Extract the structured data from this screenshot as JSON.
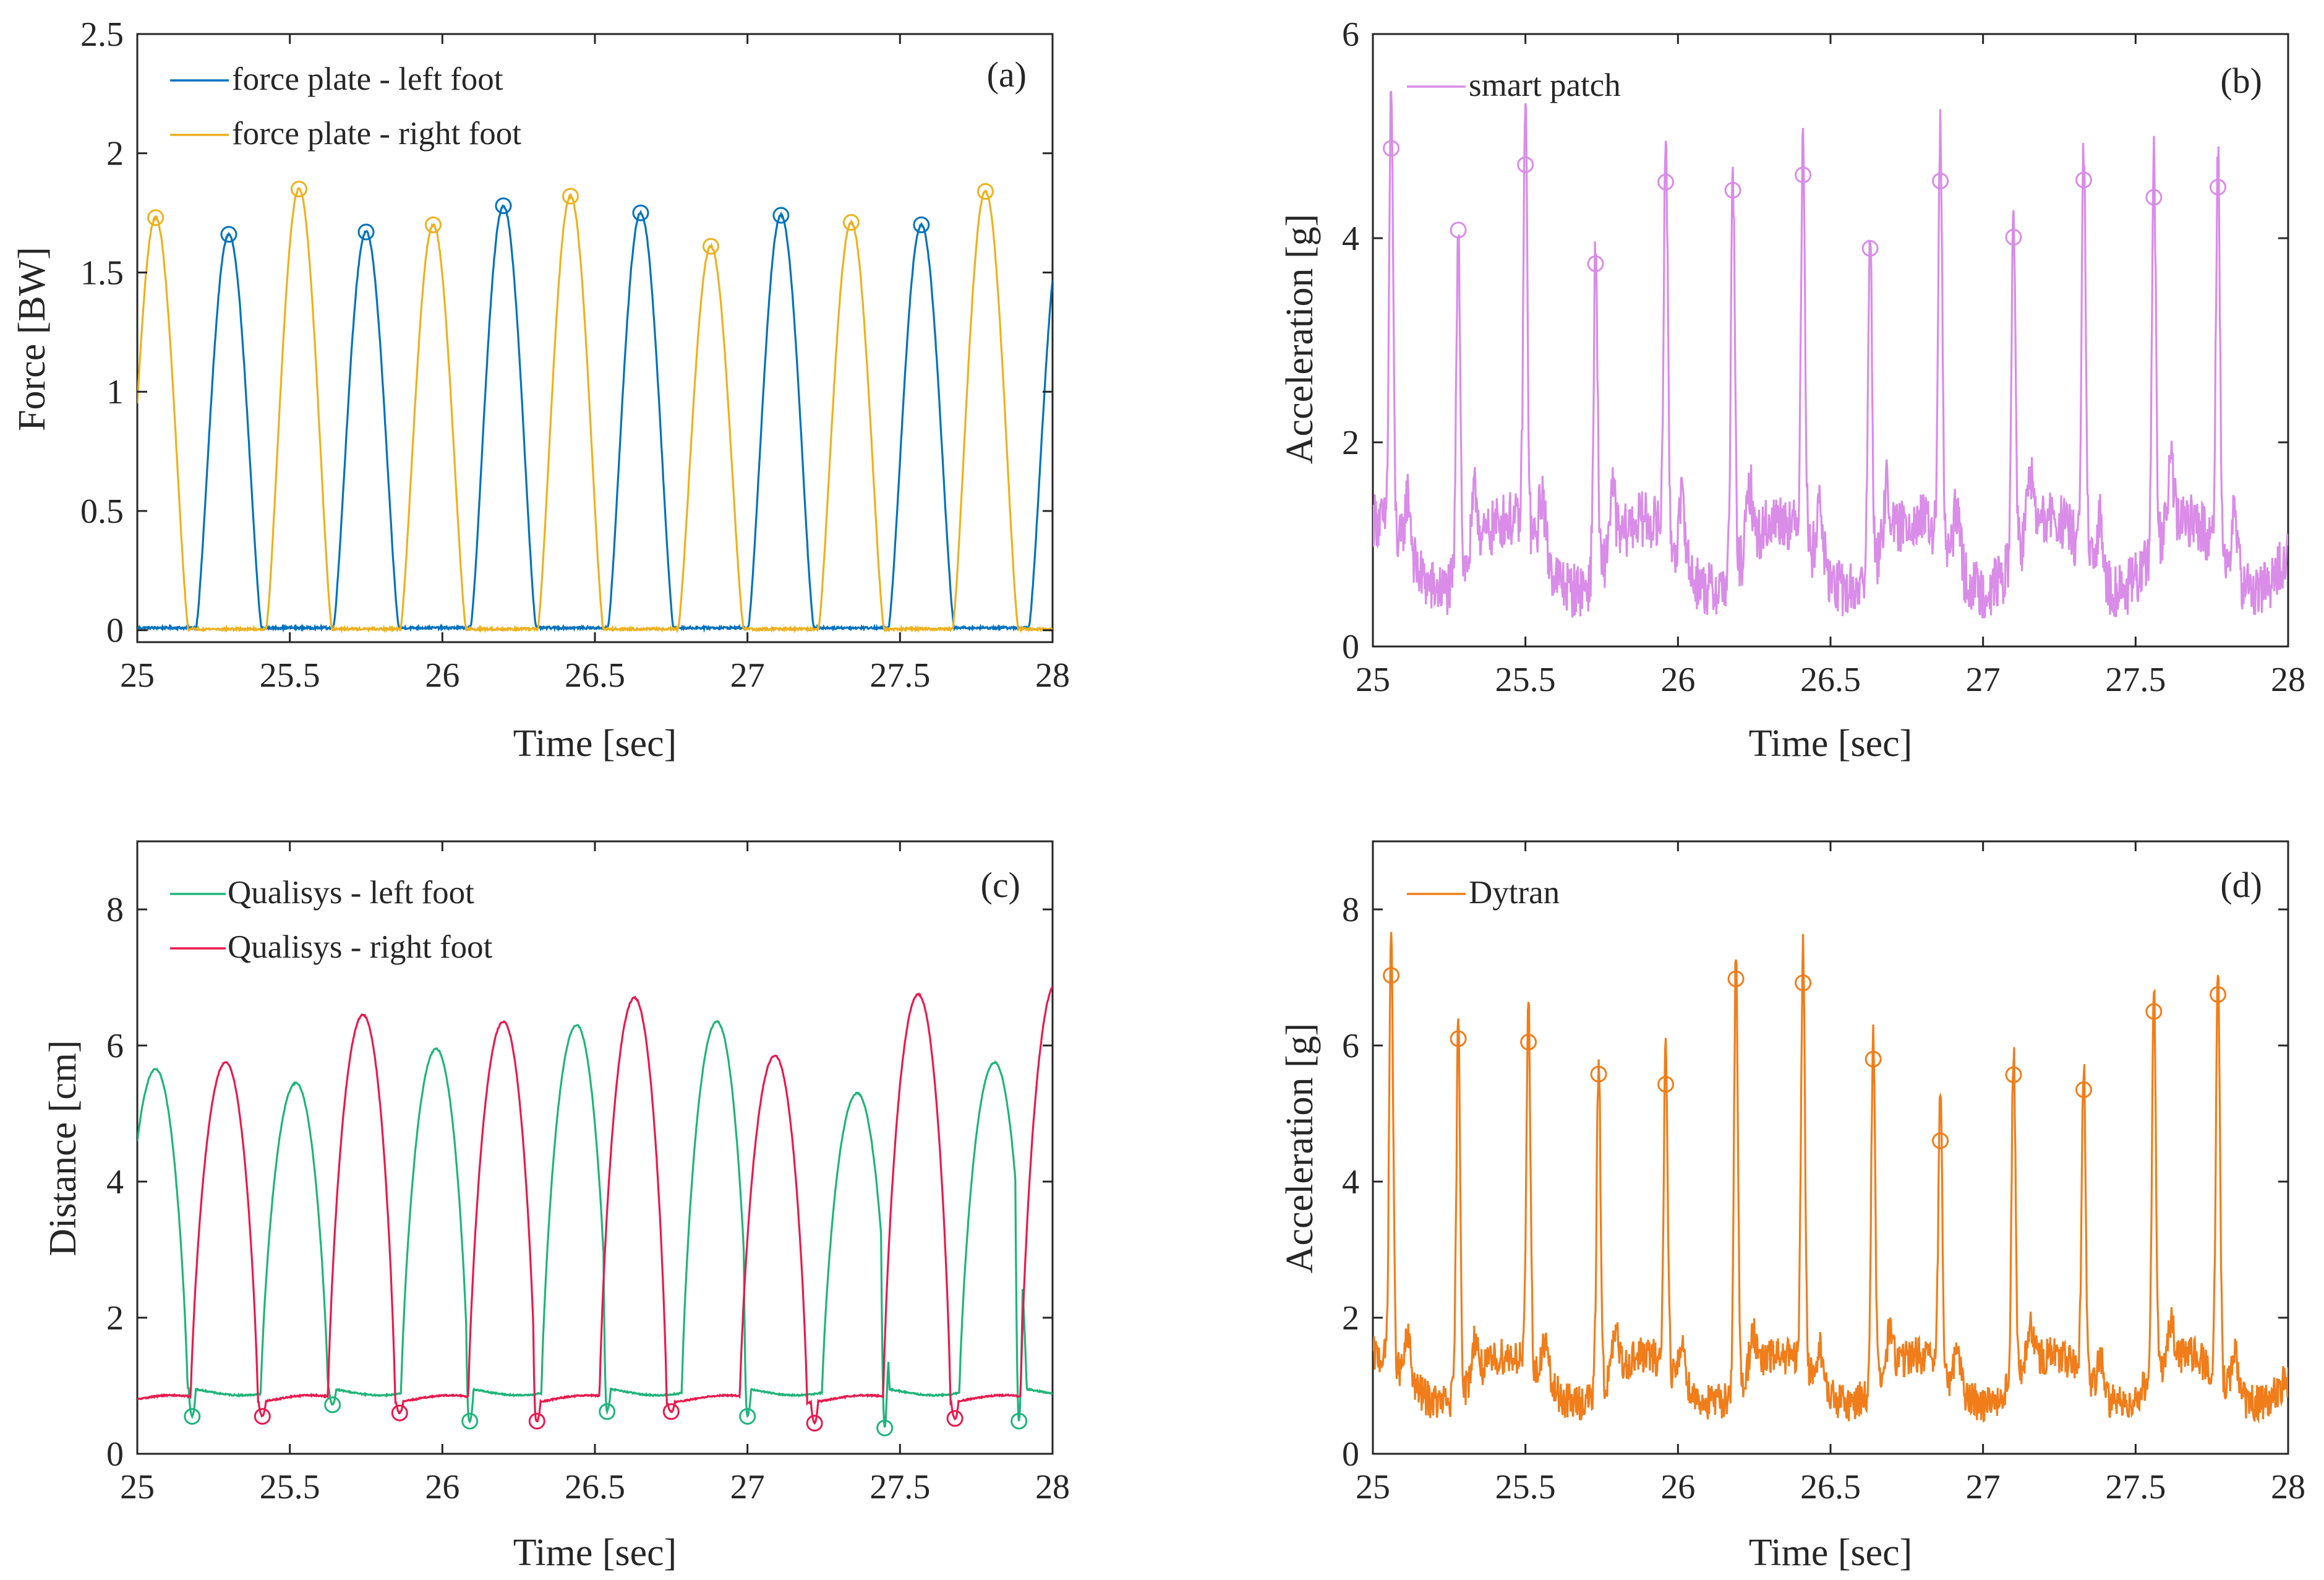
{
  "figure": {
    "xlabel": "Time [sec]"
  },
  "chart_data": [
    {
      "panel": "(a)",
      "type": "line",
      "title": "",
      "xlabel": "Time [sec]",
      "ylabel": "Force [BW]",
      "xlim": [
        25,
        28
      ],
      "ylim": [
        -0.05,
        2.5
      ],
      "xticks": [
        25,
        25.5,
        26,
        26.5,
        27,
        27.5,
        28
      ],
      "xtick_labels": [
        "25",
        "25.5",
        "26",
        "26.5",
        "27",
        "27.5",
        "28"
      ],
      "yticks": [
        0,
        0.5,
        1,
        1.5,
        2,
        2.5
      ],
      "ytick_labels": [
        "0",
        "0.5",
        "1",
        "1.5",
        "2",
        "2.5"
      ],
      "legend_position": "top-left",
      "series": [
        {
          "name": "force plate - left foot",
          "color": "#0072BD",
          "shape": "peaks",
          "pulse_width": 0.215,
          "baseline": 0.01,
          "peaks_x": [
            25.3,
            25.75,
            26.2,
            26.65,
            27.11,
            27.57,
            28.03
          ],
          "peaks_y": [
            1.66,
            1.67,
            1.78,
            1.75,
            1.74,
            1.7,
            1.68
          ],
          "marker": "o",
          "marker_indices": [
            0,
            1,
            2,
            3,
            4,
            5
          ]
        },
        {
          "name": "force plate - right foot",
          "color": "#EDB120",
          "shape": "peaks",
          "pulse_width": 0.215,
          "baseline": 0.005,
          "peaks_x": [
            25.06,
            25.53,
            25.97,
            26.42,
            26.88,
            27.34,
            27.78
          ],
          "peaks_y": [
            1.73,
            1.85,
            1.7,
            1.82,
            1.61,
            1.71,
            1.84
          ],
          "marker": "o",
          "marker_indices": [
            0,
            1,
            2,
            3,
            4,
            5,
            6
          ]
        }
      ]
    },
    {
      "panel": "(b)",
      "type": "line",
      "title": "",
      "xlabel": "Time [sec]",
      "ylabel": "Acceleration [g]",
      "xlim": [
        25,
        28
      ],
      "ylim": [
        0,
        6
      ],
      "xticks": [
        25,
        25.5,
        26,
        26.5,
        27,
        27.5,
        28
      ],
      "xtick_labels": [
        "25",
        "25.5",
        "26",
        "26.5",
        "27",
        "27.5",
        "28"
      ],
      "yticks": [
        0,
        2,
        4,
        6
      ],
      "ytick_labels": [
        "0",
        "2",
        "4",
        "6"
      ],
      "legend_position": "top-left",
      "series": [
        {
          "name": "smart patch",
          "color": "#D98CE8",
          "shape": "spiky",
          "base_level": 0.9,
          "peaks_x": [
            25.06,
            25.28,
            25.5,
            25.73,
            25.96,
            26.18,
            26.41,
            26.63,
            26.86,
            27.1,
            27.33,
            27.56,
            27.77
          ],
          "peaks_y": [
            4.88,
            4.08,
            4.72,
            3.75,
            4.55,
            4.47,
            4.62,
            3.9,
            4.56,
            4.01,
            4.57,
            4.4,
            4.5
          ],
          "marker": "o",
          "marker_indices": [
            0,
            1,
            2,
            3,
            4,
            5,
            6,
            7,
            8,
            9,
            10,
            11,
            12
          ]
        }
      ]
    },
    {
      "panel": "(c)",
      "type": "line",
      "title": "",
      "xlabel": "Time [sec]",
      "ylabel": "Distance [cm]",
      "xlim": [
        25,
        28
      ],
      "ylim": [
        0,
        9
      ],
      "xticks": [
        25,
        25.5,
        26,
        26.5,
        27,
        27.5,
        28
      ],
      "xtick_labels": [
        "25",
        "25.5",
        "26",
        "26.5",
        "27",
        "27.5",
        "28"
      ],
      "yticks": [
        0,
        2,
        4,
        6,
        8
      ],
      "ytick_labels": [
        "0",
        "2",
        "4",
        "6",
        "8"
      ],
      "legend_position": "top-left",
      "series": [
        {
          "name": "Qualisys - left foot",
          "color": "#1FB47A",
          "shape": "arches",
          "baseline": 0.92,
          "peaks_x": [
            25.06,
            25.52,
            25.98,
            26.44,
            26.9,
            27.36,
            27.81
          ],
          "peaks_y": [
            5.65,
            5.45,
            5.95,
            6.3,
            6.35,
            5.3,
            5.75
          ],
          "minima_x": [
            25.18,
            25.64,
            26.09,
            26.54,
            27.0,
            27.45,
            27.89
          ],
          "minima_y": [
            0.55,
            0.72,
            0.48,
            0.62,
            0.55,
            0.38,
            0.48
          ],
          "marker": "o"
        },
        {
          "name": "Qualisys - right foot",
          "color": "#E8194E",
          "shape": "arches",
          "baseline": 0.8,
          "peaks_x": [
            25.29,
            25.74,
            26.2,
            26.63,
            27.09,
            27.56,
            28.01
          ],
          "peaks_y": [
            5.75,
            6.45,
            6.35,
            6.7,
            5.85,
            6.75,
            6.9
          ],
          "minima_x": [
            25.41,
            25.86,
            26.31,
            26.75,
            27.22,
            27.68
          ],
          "minima_y": [
            0.55,
            0.6,
            0.48,
            0.62,
            0.45,
            0.52
          ],
          "marker": "o"
        }
      ]
    },
    {
      "panel": "(d)",
      "type": "line",
      "title": "",
      "xlabel": "Time [sec]",
      "ylabel": "Acceleration [g]",
      "xlim": [
        25,
        28
      ],
      "ylim": [
        0,
        9
      ],
      "xticks": [
        25,
        25.5,
        26,
        26.5,
        27,
        27.5,
        28
      ],
      "xtick_labels": [
        "25",
        "25.5",
        "26",
        "26.5",
        "27",
        "27.5",
        "28"
      ],
      "yticks": [
        0,
        2,
        4,
        6,
        8
      ],
      "ytick_labels": [
        "0",
        "2",
        "4",
        "6",
        "8"
      ],
      "legend_position": "top-left",
      "series": [
        {
          "name": "Dytran",
          "color": "#F07D1A",
          "shape": "spiky",
          "base_level": 1.1,
          "peaks_x": [
            25.06,
            25.28,
            25.51,
            25.74,
            25.96,
            26.19,
            26.41,
            26.64,
            26.86,
            27.1,
            27.33,
            27.56,
            27.77
          ],
          "peaks_y": [
            7.03,
            6.1,
            6.05,
            5.58,
            5.43,
            6.98,
            6.92,
            5.8,
            4.6,
            5.57,
            5.35,
            6.5,
            6.75
          ],
          "marker": "o",
          "marker_indices": [
            0,
            1,
            2,
            3,
            4,
            5,
            6,
            7,
            8,
            9,
            10,
            11,
            12
          ]
        }
      ]
    }
  ]
}
